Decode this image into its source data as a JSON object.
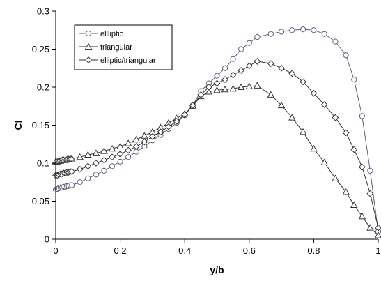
{
  "chart_data": {
    "type": "line",
    "title": "",
    "xlabel": "y/b",
    "ylabel": "Cl",
    "xlim": [
      0,
      1
    ],
    "ylim": [
      0,
      0.3
    ],
    "xticks": [
      "0",
      "0.2",
      "0.4",
      "0.6",
      "0.8",
      "1"
    ],
    "yticks": [
      "0",
      "0.05",
      "0.1",
      "0.15",
      "0.2",
      "0.25",
      "0.3"
    ],
    "xtick_values": [
      0,
      0.2,
      0.4,
      0.6,
      0.8,
      1.0
    ],
    "ytick_values": [
      0,
      0.05,
      0.1,
      0.15,
      0.2,
      0.25,
      0.3
    ],
    "grid": false,
    "legend_position": "top-left",
    "series": [
      {
        "name": "ellliptic",
        "marker": "circle",
        "color": "#5a5f7a",
        "x": [
          0,
          0.005,
          0.01,
          0.015,
          0.02,
          0.025,
          0.03,
          0.035,
          0.04,
          0.045,
          0.05,
          0.075,
          0.1,
          0.125,
          0.15,
          0.175,
          0.2,
          0.225,
          0.25,
          0.275,
          0.3,
          0.325,
          0.35,
          0.375,
          0.4,
          0.425,
          0.45,
          0.475,
          0.5,
          0.525,
          0.55,
          0.575,
          0.6,
          0.625,
          0.667,
          0.7,
          0.733,
          0.767,
          0.8,
          0.833,
          0.867,
          0.9,
          0.925,
          0.95,
          0.975,
          1.0
        ],
        "values": [
          0.065,
          0.066,
          0.067,
          0.068,
          0.068,
          0.069,
          0.069,
          0.07,
          0.07,
          0.071,
          0.071,
          0.075,
          0.08,
          0.085,
          0.09,
          0.096,
          0.102,
          0.108,
          0.115,
          0.122,
          0.13,
          0.137,
          0.145,
          0.153,
          0.163,
          0.176,
          0.195,
          0.205,
          0.215,
          0.225,
          0.237,
          0.25,
          0.258,
          0.266,
          0.27,
          0.273,
          0.275,
          0.276,
          0.275,
          0.27,
          0.26,
          0.242,
          0.21,
          0.162,
          0.09,
          0.01
        ]
      },
      {
        "name": "triangular",
        "marker": "triangle",
        "color": "#333333",
        "x": [
          0,
          0.005,
          0.01,
          0.015,
          0.02,
          0.025,
          0.03,
          0.035,
          0.04,
          0.045,
          0.05,
          0.075,
          0.1,
          0.125,
          0.15,
          0.175,
          0.2,
          0.225,
          0.25,
          0.275,
          0.3,
          0.325,
          0.35,
          0.375,
          0.4,
          0.425,
          0.45,
          0.475,
          0.5,
          0.525,
          0.55,
          0.575,
          0.6,
          0.625,
          0.667,
          0.7,
          0.733,
          0.767,
          0.8,
          0.833,
          0.867,
          0.9,
          0.925,
          0.95,
          0.975,
          1.0
        ],
        "values": [
          0.102,
          0.102,
          0.103,
          0.103,
          0.104,
          0.104,
          0.104,
          0.105,
          0.105,
          0.106,
          0.106,
          0.108,
          0.111,
          0.113,
          0.116,
          0.119,
          0.122,
          0.126,
          0.131,
          0.136,
          0.141,
          0.147,
          0.153,
          0.159,
          0.165,
          0.175,
          0.188,
          0.194,
          0.196,
          0.197,
          0.198,
          0.2,
          0.201,
          0.202,
          0.19,
          0.176,
          0.16,
          0.141,
          0.119,
          0.101,
          0.08,
          0.062,
          0.045,
          0.03,
          0.015,
          0.005
        ]
      },
      {
        "name": "elliptic/triangular",
        "marker": "diamond",
        "color": "#333333",
        "x": [
          0,
          0.005,
          0.01,
          0.015,
          0.02,
          0.025,
          0.03,
          0.035,
          0.04,
          0.045,
          0.05,
          0.075,
          0.1,
          0.125,
          0.15,
          0.175,
          0.2,
          0.225,
          0.25,
          0.275,
          0.3,
          0.325,
          0.35,
          0.375,
          0.4,
          0.425,
          0.45,
          0.475,
          0.5,
          0.525,
          0.55,
          0.575,
          0.6,
          0.625,
          0.667,
          0.7,
          0.733,
          0.767,
          0.8,
          0.833,
          0.867,
          0.9,
          0.925,
          0.95,
          0.975,
          1.0
        ],
        "values": [
          0.084,
          0.084,
          0.085,
          0.086,
          0.086,
          0.087,
          0.087,
          0.088,
          0.088,
          0.089,
          0.089,
          0.092,
          0.096,
          0.1,
          0.104,
          0.108,
          0.112,
          0.117,
          0.122,
          0.128,
          0.135,
          0.141,
          0.148,
          0.155,
          0.164,
          0.176,
          0.19,
          0.2,
          0.205,
          0.21,
          0.216,
          0.222,
          0.228,
          0.234,
          0.231,
          0.225,
          0.218,
          0.207,
          0.192,
          0.177,
          0.16,
          0.14,
          0.118,
          0.095,
          0.06,
          0.015
        ]
      }
    ]
  }
}
